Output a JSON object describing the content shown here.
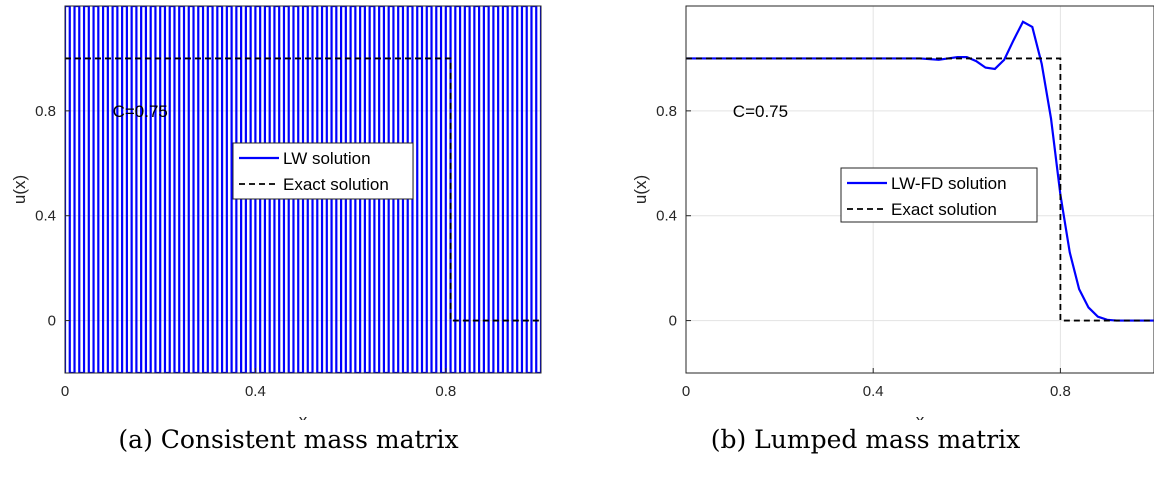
{
  "chart_data": [
    {
      "type": "line",
      "xlabel": "x",
      "ylabel": "u(x)",
      "xlim": [
        0,
        1
      ],
      "ylim": [
        -0.2,
        1.2
      ],
      "xticks": [
        "0",
        "0.4",
        "0.8"
      ],
      "yticks": [
        "0",
        "0.4",
        "0.8"
      ],
      "xtick_values": [
        0,
        0.4,
        0.8
      ],
      "ytick_values": [
        0,
        0.4,
        0.8
      ],
      "grid": true,
      "annotation": {
        "text": "C=0.75",
        "x": 0.1,
        "y": 0.8
      },
      "legend": "center-right",
      "caption": "(a) Consistent mass matrix",
      "series": [
        {
          "name": "LW solution",
          "color": "#0000ff",
          "style": "solid",
          "description_values": "oscillates between y-limits at every grid point",
          "x_oscillation_start": 0,
          "x_oscillation_end": 1,
          "oscillation_count": 50,
          "y_low": -0.2,
          "y_high": 1.2
        },
        {
          "name": "Exact solution",
          "color": "#000000",
          "style": "dashed",
          "x": [
            0,
            0.81,
            0.81,
            1
          ],
          "y": [
            1,
            1,
            0,
            0
          ]
        }
      ]
    },
    {
      "type": "line",
      "xlabel": "x",
      "ylabel": "u(x)",
      "xlim": [
        0,
        1
      ],
      "ylim": [
        -0.2,
        1.2
      ],
      "xticks": [
        "0",
        "0.4",
        "0.8"
      ],
      "yticks": [
        "0",
        "0.4",
        "0.8"
      ],
      "xtick_values": [
        0,
        0.4,
        0.8
      ],
      "ytick_values": [
        0,
        0.4,
        0.8
      ],
      "grid": true,
      "annotation": {
        "text": "C=0.75",
        "x": 0.1,
        "y": 0.8
      },
      "legend": "center-right",
      "caption": "(b) Lumped mass matrix",
      "series": [
        {
          "name": "LW-FD solution",
          "color": "#0000ff",
          "style": "solid",
          "x": [
            0,
            0.45,
            0.5,
            0.54,
            0.56,
            0.58,
            0.6,
            0.62,
            0.64,
            0.66,
            0.68,
            0.7,
            0.72,
            0.74,
            0.76,
            0.78,
            0.8,
            0.82,
            0.84,
            0.86,
            0.88,
            0.9,
            0.92,
            0.95,
            1.0
          ],
          "y": [
            1.0,
            1.0,
            1.0,
            0.995,
            1.0,
            1.005,
            1.005,
            0.99,
            0.965,
            0.96,
            0.995,
            1.07,
            1.14,
            1.12,
            0.98,
            0.77,
            0.48,
            0.26,
            0.12,
            0.05,
            0.015,
            0.003,
            0.0,
            0.0,
            0.0
          ]
        },
        {
          "name": "Exact solution",
          "color": "#000000",
          "style": "dashed",
          "x": [
            0,
            0.8,
            0.8,
            1
          ],
          "y": [
            1,
            1,
            0,
            0
          ]
        }
      ]
    }
  ]
}
